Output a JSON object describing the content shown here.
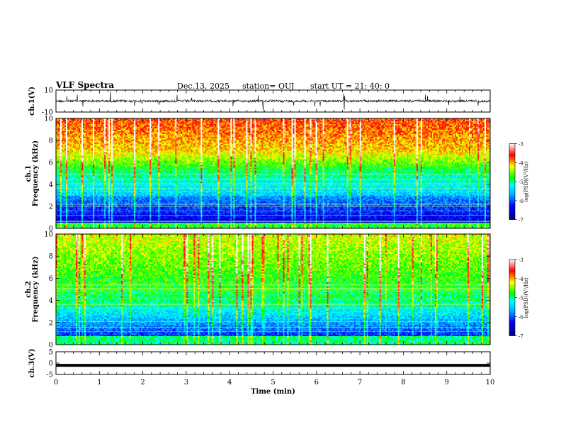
{
  "header": {
    "title": "VLF Spectra",
    "date": "Dec.13, 2025",
    "station": "station= OUJ",
    "start": "start  UT =   21: 40: 0"
  },
  "chart_data": [
    {
      "type": "line",
      "name": "ch1-waveform",
      "ylabel": "ch.1(V)",
      "ylim": [
        -10,
        10
      ],
      "yticks": [
        "10",
        "-10"
      ],
      "baseline": 0,
      "color": "#000000"
    },
    {
      "type": "heatmap",
      "name": "ch1-spectrogram",
      "ylabel": "ch.1\nFrequency (kHz)",
      "ylim": [
        0,
        10
      ],
      "yticks": [
        "0",
        "2",
        "4",
        "6",
        "8",
        "10"
      ],
      "colorbar": {
        "label": "log(PSD)(V²/Hz)",
        "range": [
          -7,
          -3
        ],
        "ticks": [
          "-3",
          "-4",
          "-5",
          "-6",
          "-7"
        ]
      }
    },
    {
      "type": "heatmap",
      "name": "ch2-spectrogram",
      "ylabel": "ch.2\nFrequency (kHz)",
      "ylim": [
        0,
        10
      ],
      "yticks": [
        "0",
        "2",
        "4",
        "6",
        "8",
        "10"
      ],
      "colorbar": {
        "label": "log(PSD)(V²/Hz)",
        "range": [
          -7,
          -3
        ],
        "ticks": [
          "-3",
          "-4",
          "-5",
          "-6",
          "-7"
        ]
      }
    },
    {
      "type": "line",
      "name": "ch3-waveform",
      "ylabel": "ch.3(V)",
      "ylim": [
        -5,
        5
      ],
      "yticks": [
        "5",
        "0",
        "-5"
      ],
      "baseline": -1,
      "color": "#000000"
    }
  ],
  "xaxis": {
    "label": "Time (min)",
    "xlim": [
      0,
      10
    ],
    "ticks": [
      "0",
      "1",
      "2",
      "3",
      "4",
      "5",
      "6",
      "7",
      "8",
      "9",
      "10"
    ]
  }
}
